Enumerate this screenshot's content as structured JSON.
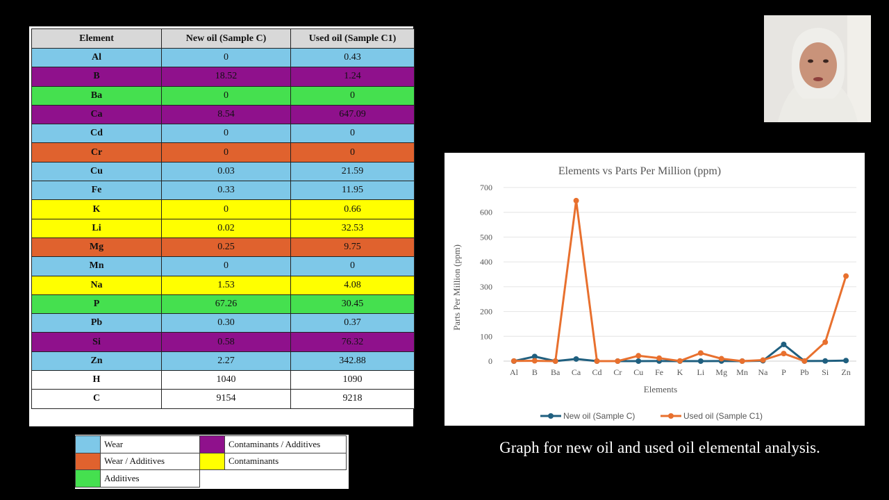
{
  "table": {
    "headers": [
      "Element",
      "New oil (Sample C)",
      "Used oil (Sample C1)"
    ],
    "rows": [
      {
        "element": "Al",
        "new": "0",
        "used": "0.43",
        "category": "wear"
      },
      {
        "element": "B",
        "new": "18.52",
        "used": "1.24",
        "category": "contam-add"
      },
      {
        "element": "Ba",
        "new": "0",
        "used": "0",
        "category": "additives"
      },
      {
        "element": "Ca",
        "new": "8.54",
        "used": "647.09",
        "category": "contam-add"
      },
      {
        "element": "Cd",
        "new": "0",
        "used": "0",
        "category": "wear"
      },
      {
        "element": "Cr",
        "new": "0",
        "used": "0",
        "category": "wear-add"
      },
      {
        "element": "Cu",
        "new": "0.03",
        "used": "21.59",
        "category": "wear"
      },
      {
        "element": "Fe",
        "new": "0.33",
        "used": "11.95",
        "category": "wear"
      },
      {
        "element": "K",
        "new": "0",
        "used": "0.66",
        "category": "contam"
      },
      {
        "element": "Li",
        "new": "0.02",
        "used": "32.53",
        "category": "contam"
      },
      {
        "element": "Mg",
        "new": "0.25",
        "used": "9.75",
        "category": "wear-add"
      },
      {
        "element": "Mn",
        "new": "0",
        "used": "0",
        "category": "wear"
      },
      {
        "element": "Na",
        "new": "1.53",
        "used": "4.08",
        "category": "contam"
      },
      {
        "element": "P",
        "new": "67.26",
        "used": "30.45",
        "category": "additives"
      },
      {
        "element": "Pb",
        "new": "0.30",
        "used": "0.37",
        "category": "wear"
      },
      {
        "element": "Si",
        "new": "0.58",
        "used": "76.32",
        "category": "contam-add"
      },
      {
        "element": "Zn",
        "new": "2.27",
        "used": "342.88",
        "category": "wear"
      },
      {
        "element": "H",
        "new": "1040",
        "used": "1090",
        "category": "none"
      },
      {
        "element": "C",
        "new": "9154",
        "used": "9218",
        "category": "none"
      }
    ]
  },
  "category_legend": {
    "items": [
      {
        "label": "Wear",
        "color": "#7ec8e8"
      },
      {
        "label": "Contaminants / Additives",
        "color": "#8f118c"
      },
      {
        "label": "Wear / Additives",
        "color": "#e0622e"
      },
      {
        "label": "Contaminants",
        "color": "#ffff00"
      },
      {
        "label": "Additives",
        "color": "#45e04f"
      }
    ]
  },
  "chart_data": {
    "type": "line",
    "title": "Elements vs Parts Per Million (ppm)",
    "xlabel": "Elements",
    "ylabel": "Parts Per Million (ppm)",
    "categories": [
      "Al",
      "B",
      "Ba",
      "Ca",
      "Cd",
      "Cr",
      "Cu",
      "Fe",
      "K",
      "Li",
      "Mg",
      "Mn",
      "Na",
      "P",
      "Pb",
      "Si",
      "Zn"
    ],
    "ylim": [
      0,
      700
    ],
    "yticks": [
      0,
      100,
      200,
      300,
      400,
      500,
      600,
      700
    ],
    "grid": true,
    "legend_position": "bottom",
    "series": [
      {
        "name": "New oil (Sample C)",
        "color": "#1f5f7f",
        "values": [
          0,
          18.52,
          0,
          8.54,
          0,
          0,
          0.03,
          0.33,
          0,
          0.02,
          0.25,
          0,
          1.53,
          67.26,
          0.3,
          0.58,
          2.27
        ]
      },
      {
        "name": "Used oil (Sample C1)",
        "color": "#e8702e",
        "values": [
          0.43,
          1.24,
          0,
          647.09,
          0,
          0,
          21.59,
          11.95,
          0.66,
          32.53,
          9.75,
          0,
          4.08,
          30.45,
          0.37,
          76.32,
          342.88
        ]
      }
    ]
  },
  "caption": "Graph for new oil and used oil elemental analysis."
}
